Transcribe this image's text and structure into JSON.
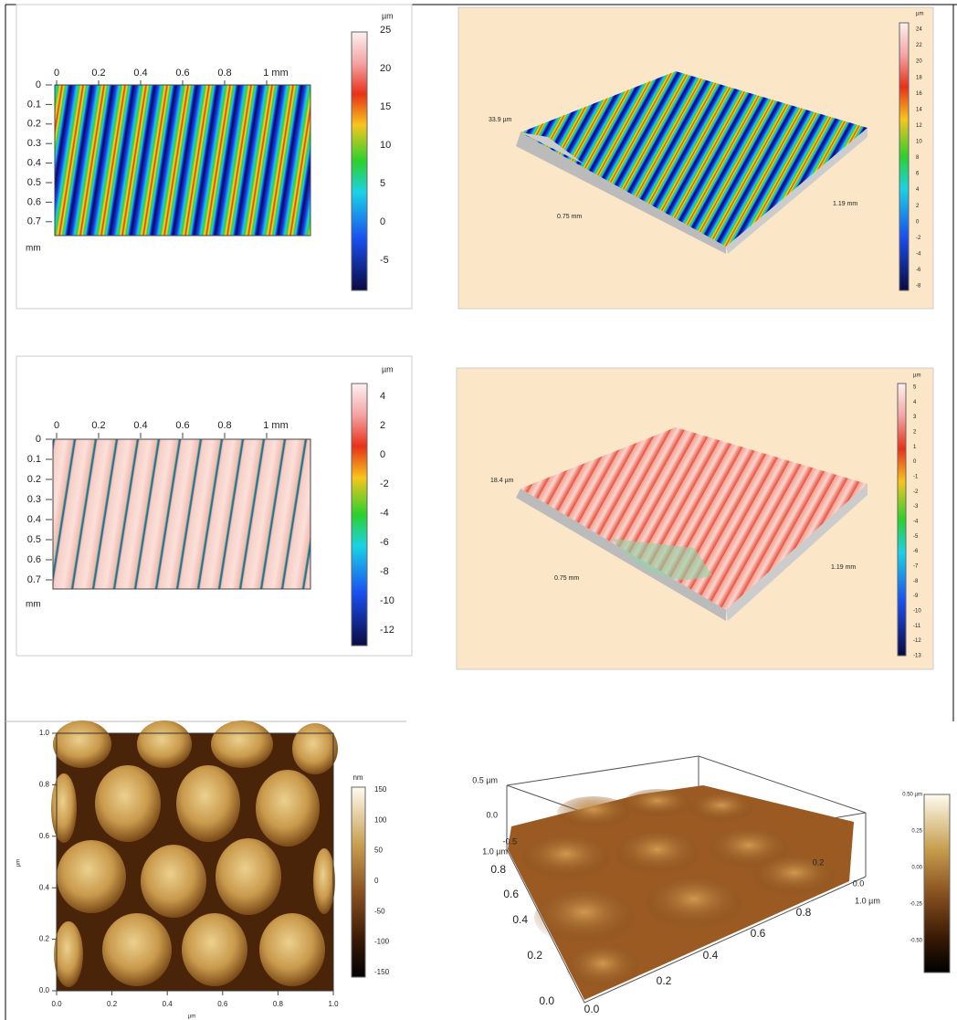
{
  "panels": [
    {
      "x_ticks": [
        "0",
        "0.2",
        "0.4",
        "0.6",
        "0.8",
        "1 mm"
      ],
      "y_ticks": [
        "0",
        "0.1",
        "0.2",
        "0.3",
        "0.4",
        "0.5",
        "0.6",
        "0.7"
      ],
      "axis_unit": "mm",
      "colorbar_unit": "µm",
      "colorbar_ticks": [
        "25",
        "20",
        "15",
        "10",
        "5",
        "0",
        "-5"
      ]
    },
    {
      "height": "33.9 µm",
      "length_x": "0.75 mm",
      "length_y": "1.19 mm",
      "colorbar_unit": "µm",
      "colorbar_ticks": [
        "24",
        "22",
        "20",
        "18",
        "16",
        "14",
        "12",
        "10",
        "8",
        "6",
        "4",
        "2",
        "0",
        "-2",
        "-4",
        "-6",
        "-8"
      ]
    },
    {
      "x_ticks": [
        "0",
        "0.2",
        "0.4",
        "0.6",
        "0.8",
        "1 mm"
      ],
      "y_ticks": [
        "0",
        "0.1",
        "0.2",
        "0.3",
        "0.4",
        "0.5",
        "0.6",
        "0.7"
      ],
      "axis_unit": "mm",
      "colorbar_unit": "µm",
      "colorbar_ticks": [
        "4",
        "2",
        "0",
        "-2",
        "-4",
        "-6",
        "-8",
        "-10",
        "-12"
      ]
    },
    {
      "height": "18.4 µm",
      "length_x": "0.75 mm",
      "length_y": "1.19 mm",
      "colorbar_unit": "µm",
      "colorbar_ticks": [
        "5",
        "4",
        "3",
        "2",
        "1",
        "0",
        "-1",
        "-2",
        "-3",
        "-4",
        "-5",
        "-6",
        "-7",
        "-8",
        "-9",
        "-10",
        "-11",
        "-12",
        "-13"
      ]
    },
    {
      "x_ticks": [
        "0.0",
        "0.2",
        "0.4",
        "0.6",
        "0.8",
        "1.0"
      ],
      "y_ticks": [
        "1.0",
        "0.8",
        "0.6",
        "0.4",
        "0.2",
        "0.0"
      ],
      "x_unit": "µm",
      "y_unit": "µm",
      "colorbar_unit": "nm",
      "colorbar_ticks": [
        "150",
        "100",
        "50",
        "0",
        "-50",
        "-100",
        "-150"
      ]
    },
    {
      "z_ticks": [
        "0.5 µm",
        "0.0",
        "-0.5"
      ],
      "y_ticks": [
        "1.0 µm",
        "0.8",
        "0.6",
        "0.4",
        "0.2",
        "0.0"
      ],
      "x_ticks": [
        "0.0",
        "0.2",
        "0.4",
        "0.6",
        "0.8",
        "1.0 µm"
      ],
      "back_ticks": [
        "0.0",
        "0.2"
      ],
      "colorbar_ticks": [
        "0.50 µm",
        "0.25",
        "0.00",
        "-0.25",
        "-0.50"
      ]
    }
  ]
}
